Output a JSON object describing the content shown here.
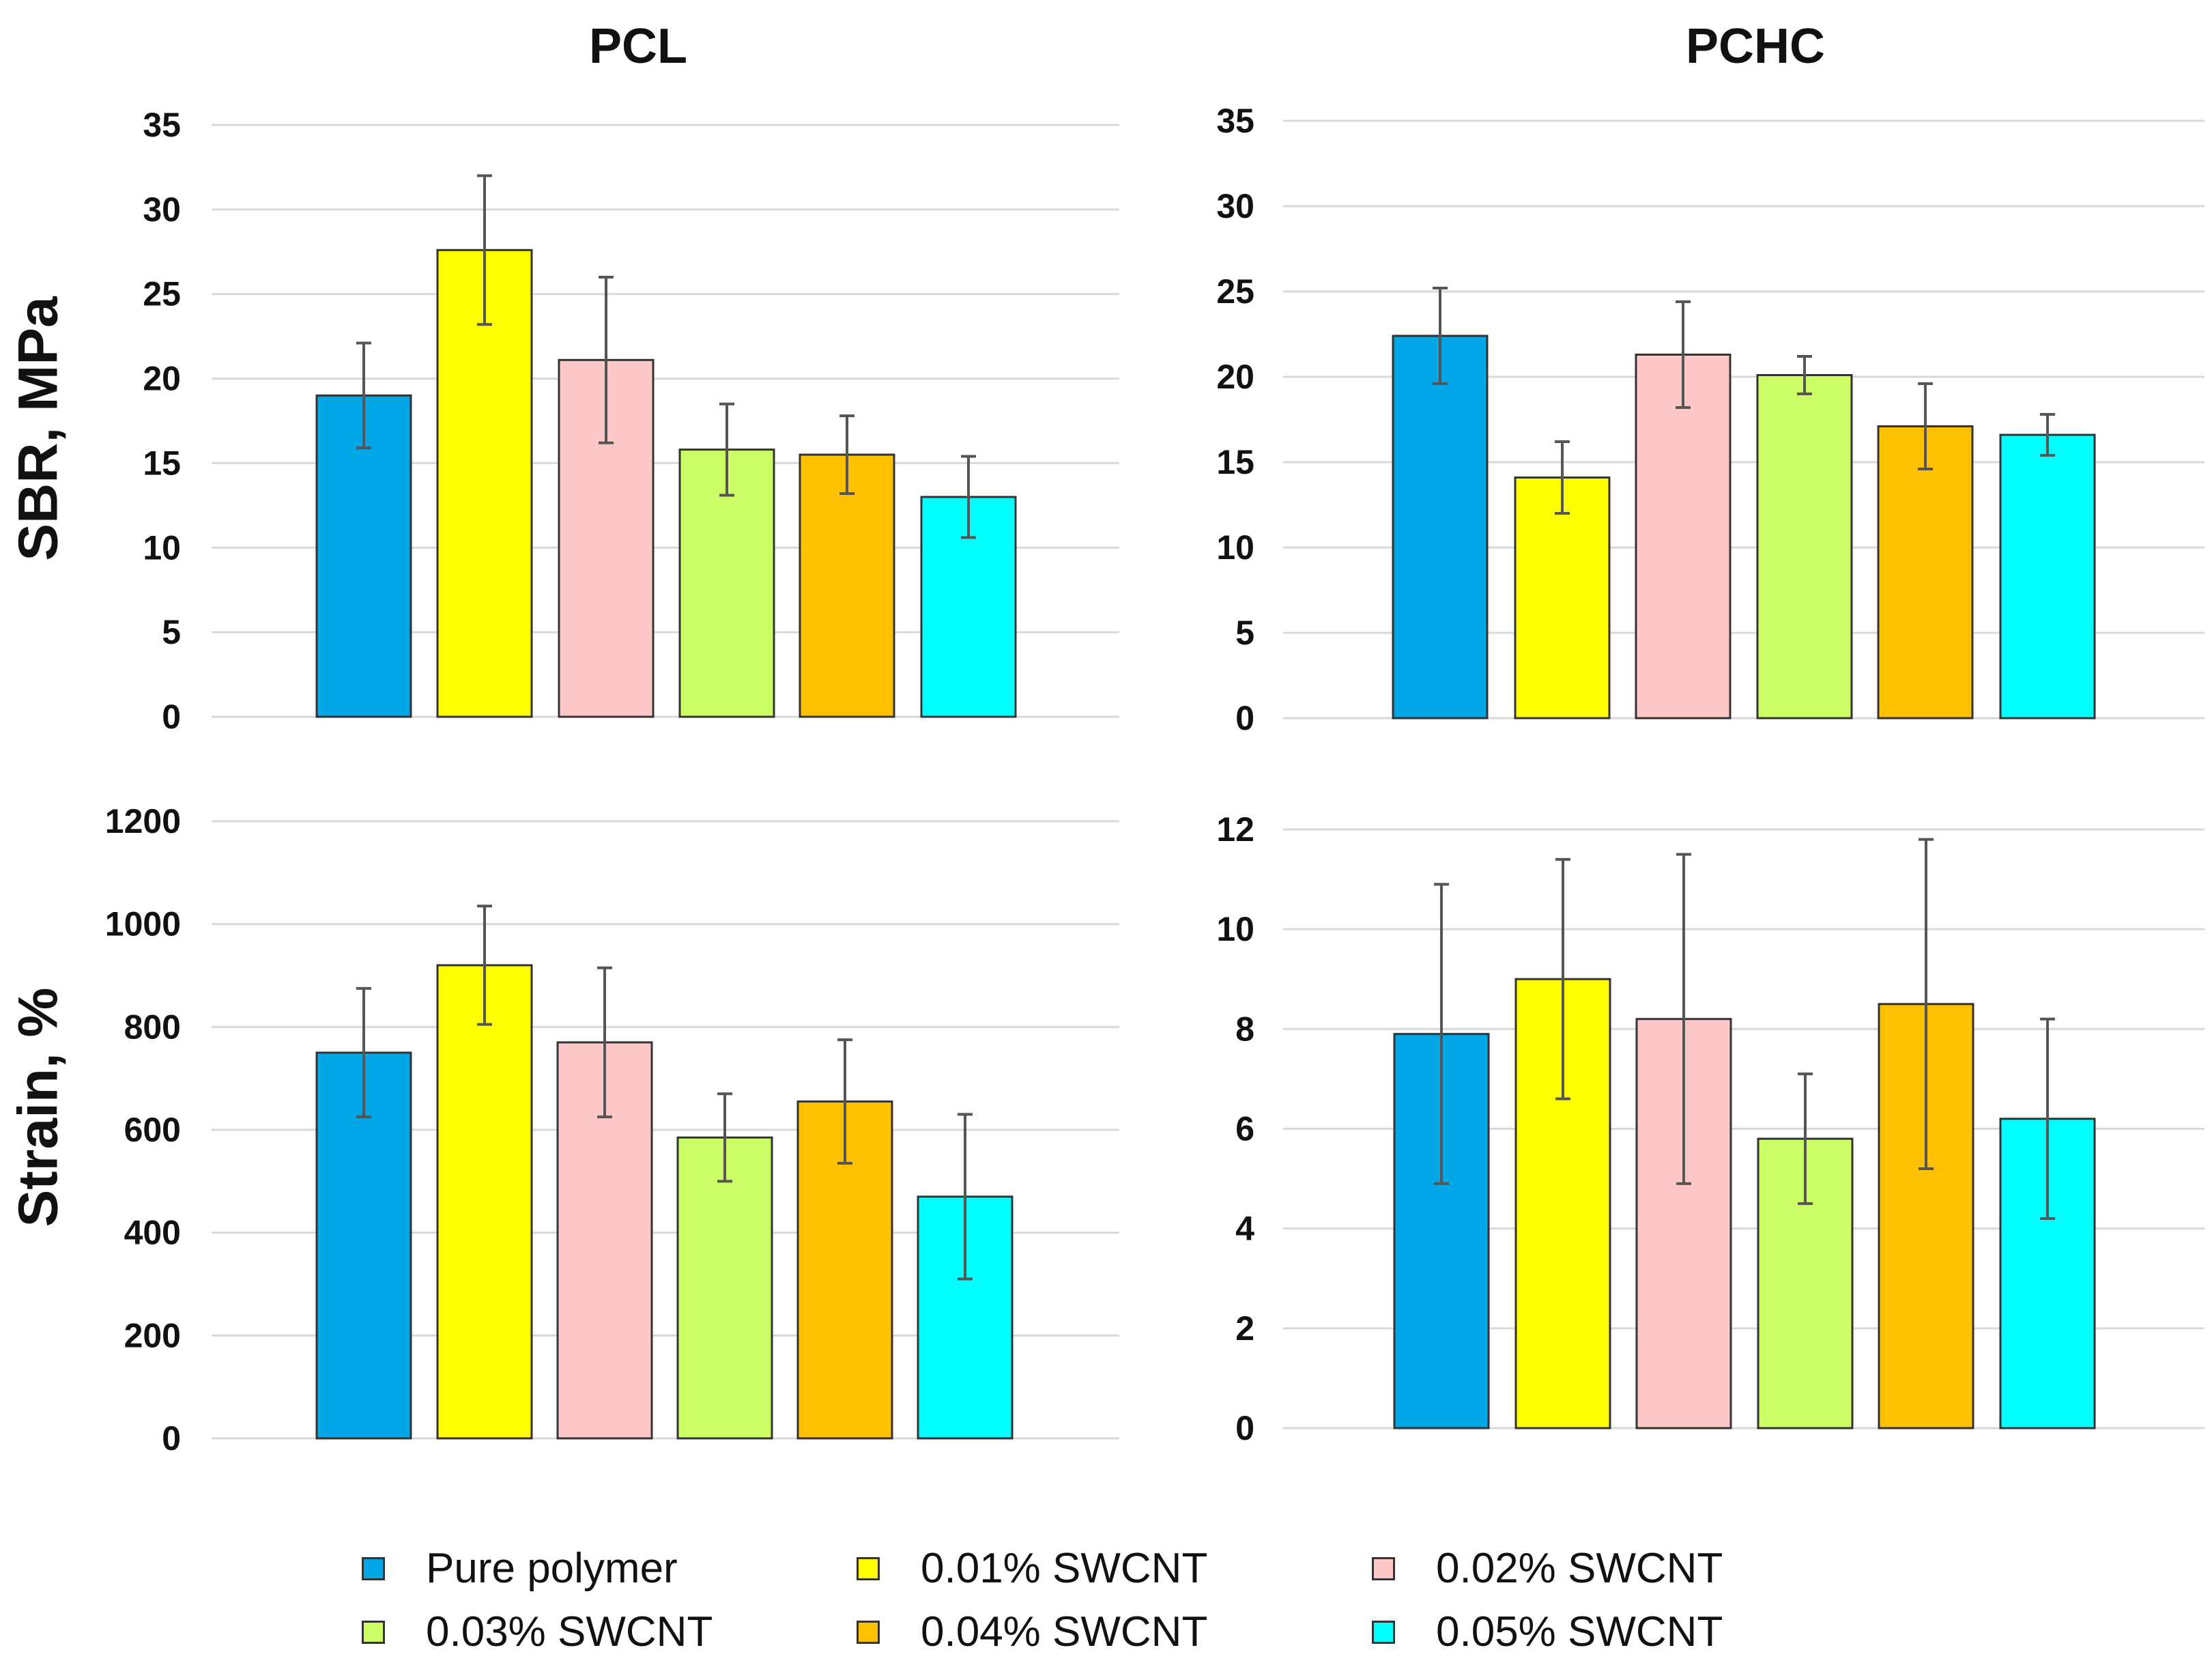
{
  "legend_items": [
    {
      "label": "Pure polymer",
      "color": "#00a6e6"
    },
    {
      "label": "0.01% SWCNT",
      "color": "#ffff00"
    },
    {
      "label": "0.02% SWCNT",
      "color": "#ffc8c8"
    },
    {
      "label": "0.03% SWCNT",
      "color": "#ccff66"
    },
    {
      "label": "0.04% SWCNT",
      "color": "#ffc000"
    },
    {
      "label": "0.05% SWCNT",
      "color": "#00ffff"
    }
  ],
  "chart_data": [
    {
      "type": "bar",
      "title": "PCL",
      "ylabel": "SBR, MPa",
      "xlabel": "",
      "ylim": [
        0,
        35
      ],
      "yticks": [
        "0",
        "5",
        "10",
        "15",
        "20",
        "25",
        "30",
        "35"
      ],
      "categories": [
        "Pure polymer",
        "0.01% SWCNT",
        "0.02% SWCNT",
        "0.03% SWCNT",
        "0.04% SWCNT",
        "0.05% SWCNT"
      ],
      "values": [
        19.0,
        27.6,
        21.1,
        15.8,
        15.5,
        13.0
      ],
      "errors": [
        3.1,
        4.4,
        4.9,
        2.7,
        2.3,
        2.4
      ],
      "grid": true
    },
    {
      "type": "bar",
      "title": "PCHC",
      "ylabel": "",
      "xlabel": "",
      "ylim": [
        0,
        35
      ],
      "yticks": [
        "0",
        "5",
        "10",
        "15",
        "20",
        "25",
        "30",
        "35"
      ],
      "categories": [
        "Pure polymer",
        "0.01% SWCNT",
        "0.02% SWCNT",
        "0.03% SWCNT",
        "0.04% SWCNT",
        "0.05% SWCNT"
      ],
      "values": [
        22.4,
        14.1,
        21.3,
        20.1,
        17.1,
        16.6
      ],
      "errors": [
        2.8,
        2.1,
        3.1,
        1.1,
        2.5,
        1.2
      ],
      "grid": true
    },
    {
      "type": "bar",
      "title": "",
      "ylabel": "Strain, %",
      "xlabel": "",
      "ylim": [
        0,
        1200
      ],
      "yticks": [
        "0",
        "200",
        "400",
        "600",
        "800",
        "1000",
        "1200"
      ],
      "categories": [
        "Pure polymer",
        "0.01% SWCNT",
        "0.02% SWCNT",
        "0.03% SWCNT",
        "0.04% SWCNT",
        "0.05% SWCNT"
      ],
      "values": [
        750,
        920,
        770,
        585,
        655,
        470
      ],
      "errors": [
        125,
        115,
        145,
        85,
        120,
        160
      ],
      "grid": true
    },
    {
      "type": "bar",
      "title": "",
      "ylabel": "",
      "xlabel": "",
      "ylim": [
        0,
        12
      ],
      "yticks": [
        "0",
        "2",
        "4",
        "6",
        "8",
        "10",
        "12"
      ],
      "categories": [
        "Pure polymer",
        "0.01% SWCNT",
        "0.02% SWCNT",
        "0.03% SWCNT",
        "0.04% SWCNT",
        "0.05% SWCNT"
      ],
      "values": [
        7.9,
        9.0,
        8.2,
        5.8,
        8.5,
        6.2
      ],
      "errors": [
        3.0,
        2.4,
        3.3,
        1.3,
        3.3,
        2.0
      ],
      "grid": true
    }
  ]
}
